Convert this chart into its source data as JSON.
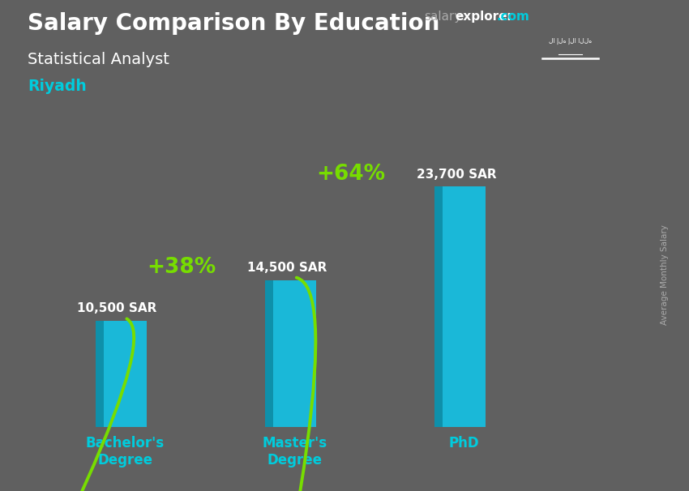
{
  "title": "Salary Comparison By Education",
  "subtitle": "Statistical Analyst",
  "location": "Riyadh",
  "ylabel": "Average Monthly Salary",
  "categories": [
    "Bachelor's\nDegree",
    "Master's\nDegree",
    "PhD"
  ],
  "values": [
    10500,
    14500,
    23700
  ],
  "labels": [
    "10,500 SAR",
    "14,500 SAR",
    "23,700 SAR"
  ],
  "pct_labels": [
    "+38%",
    "+64%"
  ],
  "bar_color_main": "#1ab8d8",
  "bar_color_left": "#0e90aa",
  "bar_color_top": "#7de6f5",
  "arrow_color": "#77dd00",
  "bg_overlay_color": "#555555",
  "title_color": "#ffffff",
  "subtitle_color": "#ffffff",
  "location_color": "#00ccdd",
  "label_color": "#ffffff",
  "pct_color": "#88ee00",
  "xtick_color": "#00ccdd",
  "bar_width": 0.38,
  "bar_depth": 0.07,
  "ylim": [
    0,
    30000
  ],
  "x_positions": [
    1.0,
    2.5,
    4.0
  ],
  "xlim": [
    0.2,
    5.2
  ],
  "flag_box_color": "#3aaa00",
  "we_color_salary": "#aaaaaa",
  "we_color_explorer": "#ffffff",
  "we_color_dotcom": "#00ccdd",
  "ylabel_color": "#aaaaaa"
}
